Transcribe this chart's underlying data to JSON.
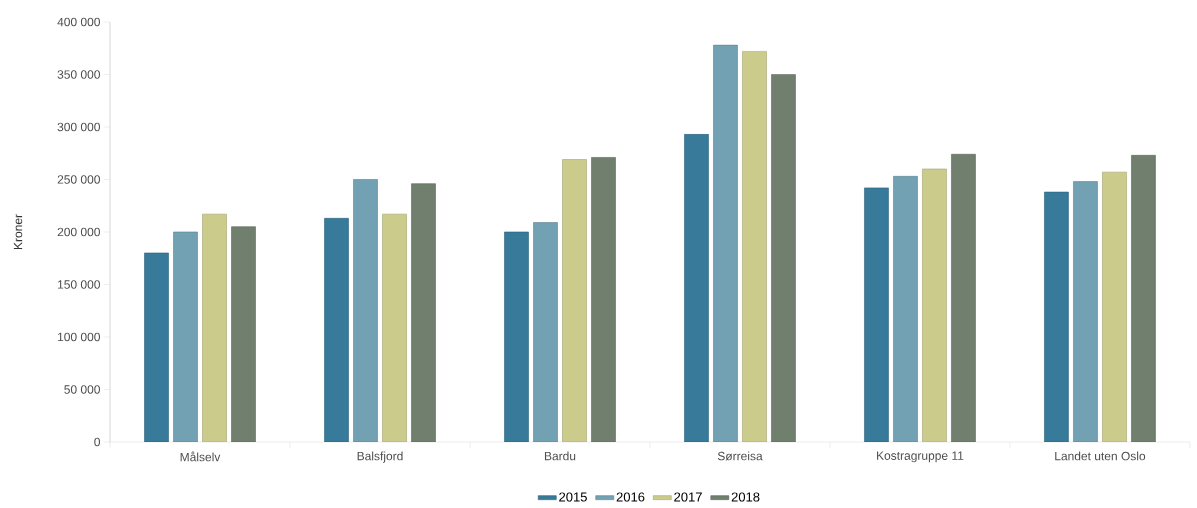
{
  "chart_data": {
    "type": "bar",
    "ylabel": "Kroner",
    "categories": [
      "Målselv",
      "Balsfjord",
      "Bardu",
      "Sørreisa",
      "Kostragruppe 11",
      "Landet uten Oslo"
    ],
    "series": [
      {
        "name": "2015",
        "color": "#377a99",
        "values": [
          180000,
          213000,
          200000,
          293000,
          242000,
          238000
        ]
      },
      {
        "name": "2016",
        "color": "#71a1b3",
        "values": [
          200000,
          250000,
          209000,
          378000,
          253000,
          248000
        ]
      },
      {
        "name": "2017",
        "color": "#cbcc8c",
        "values": [
          217000,
          217000,
          269000,
          372000,
          260000,
          257000
        ]
      },
      {
        "name": "2018",
        "color": "#71806e",
        "values": [
          205000,
          246000,
          271000,
          350000,
          274000,
          273000
        ]
      }
    ],
    "ylim": [
      0,
      400000
    ],
    "yticks": [
      {
        "value": 0,
        "label": "0"
      },
      {
        "value": 50000,
        "label": "50 000"
      },
      {
        "value": 100000,
        "label": "100 000"
      },
      {
        "value": 150000,
        "label": "150 000"
      },
      {
        "value": 200000,
        "label": "200 000"
      },
      {
        "value": 250000,
        "label": "250 000"
      },
      {
        "value": 300000,
        "label": "300 000"
      },
      {
        "value": 350000,
        "label": "350 000"
      },
      {
        "value": 400000,
        "label": "400 000"
      }
    ],
    "grid": false,
    "legend": "bottom"
  }
}
